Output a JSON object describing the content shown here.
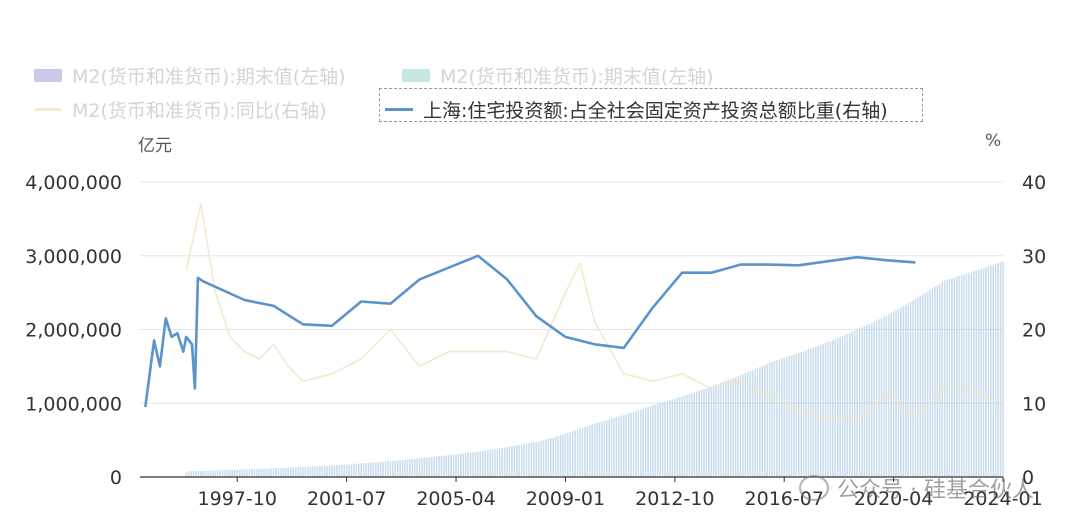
{
  "legend": {
    "item1": "M2(货币和准货币):期末值(左轴)",
    "item2": "M2(货币和准货币):期末值(左轴)",
    "item3": "M2(货币和准货币):同比(右轴)",
    "item4": "上海:住宅投资额:占全社会固定资产投资总额比重(右轴)"
  },
  "units": {
    "left": "亿元",
    "right": "%"
  },
  "watermark": "公众号 · 硅基合伙人",
  "colors": {
    "m2_bars": "#a9c8e3",
    "m2_yoy": "#f3e6c8",
    "shanghai_line": "#5b93cd",
    "legend_bar1": "#c9c9e6",
    "legend_bar2": "#c6e8e1",
    "legend_yoy": "#f5ebd3"
  },
  "chart_data": {
    "type": "bar+line",
    "x_ticks": [
      "1997-10",
      "2001-07",
      "2005-04",
      "2009-01",
      "2012-10",
      "2016-07",
      "2020-04",
      "2024-01"
    ],
    "x_range": [
      "1994-06",
      "2024-01"
    ],
    "left_axis": {
      "label": "亿元",
      "ticks": [
        "4,000,000",
        "3,000,000",
        "2,000,000",
        "1,000,000",
        "0"
      ],
      "ylim": [
        0,
        4000000
      ]
    },
    "right_axis": {
      "label": "%",
      "ticks": [
        "40",
        "30",
        "20",
        "10",
        "0"
      ],
      "ylim": [
        0,
        40
      ]
    },
    "grid": true,
    "legend_position": "top",
    "series": [
      {
        "name": "M2(货币和准货币):期末值(左轴)",
        "type": "bar",
        "axis": "left",
        "points": [
          [
            1996.0,
            76000
          ],
          [
            1998.0,
            104000
          ],
          [
            2000.0,
            134000
          ],
          [
            2002.0,
            185000
          ],
          [
            2004.0,
            254000
          ],
          [
            2006.0,
            346000
          ],
          [
            2008.0,
            475000
          ],
          [
            2010.0,
            725000
          ],
          [
            2012.0,
            974000
          ],
          [
            2014.0,
            1228000
          ],
          [
            2016.0,
            1550000
          ],
          [
            2018.0,
            1827000
          ],
          [
            2020.0,
            2187000
          ],
          [
            2022.0,
            2664000
          ],
          [
            2024.0,
            2923000
          ]
        ]
      },
      {
        "name": "M2(货币和准货币):同比(右轴)",
        "type": "line",
        "axis": "right",
        "points": [
          [
            1996.0,
            28
          ],
          [
            1996.5,
            37
          ],
          [
            1997.0,
            25
          ],
          [
            1997.5,
            19
          ],
          [
            1998.0,
            17
          ],
          [
            1998.5,
            16
          ],
          [
            1999.0,
            18
          ],
          [
            1999.5,
            15
          ],
          [
            2000.0,
            13
          ],
          [
            2001.0,
            14
          ],
          [
            2002.0,
            16
          ],
          [
            2003.0,
            20
          ],
          [
            2004.0,
            15
          ],
          [
            2005.0,
            17
          ],
          [
            2006.0,
            17
          ],
          [
            2007.0,
            17
          ],
          [
            2008.0,
            16
          ],
          [
            2009.0,
            25
          ],
          [
            2009.5,
            29
          ],
          [
            2010.0,
            21
          ],
          [
            2011.0,
            14
          ],
          [
            2012.0,
            13
          ],
          [
            2013.0,
            14
          ],
          [
            2014.0,
            12
          ],
          [
            2015.0,
            13
          ],
          [
            2016.0,
            11
          ],
          [
            2017.0,
            9
          ],
          [
            2018.0,
            8
          ],
          [
            2019.0,
            8
          ],
          [
            2020.0,
            11
          ],
          [
            2021.0,
            8
          ],
          [
            2022.0,
            12
          ],
          [
            2023.0,
            12
          ],
          [
            2024.0,
            9
          ]
        ]
      },
      {
        "name": "上海:住宅投资额:占全社会固定资产投资总额比重(右轴)",
        "type": "line",
        "axis": "right",
        "points": [
          [
            1994.6,
            9.5
          ],
          [
            1994.9,
            18.5
          ],
          [
            1995.1,
            15.0
          ],
          [
            1995.3,
            21.5
          ],
          [
            1995.5,
            19.0
          ],
          [
            1995.7,
            19.5
          ],
          [
            1995.9,
            17.0
          ],
          [
            1996.0,
            19.0
          ],
          [
            1996.2,
            18.0
          ],
          [
            1996.3,
            12.0
          ],
          [
            1996.4,
            27.0
          ],
          [
            1996.6,
            26.5
          ],
          [
            1998.0,
            24.0
          ],
          [
            1999.0,
            23.2
          ],
          [
            2000.0,
            20.7
          ],
          [
            2001.0,
            20.5
          ],
          [
            2002.0,
            23.8
          ],
          [
            2003.0,
            23.5
          ],
          [
            2004.0,
            26.8
          ],
          [
            2006.0,
            30.0
          ],
          [
            2007.0,
            26.8
          ],
          [
            2008.0,
            21.8
          ],
          [
            2009.0,
            19.0
          ],
          [
            2010.0,
            18.0
          ],
          [
            2011.0,
            17.5
          ],
          [
            2012.0,
            23.0
          ],
          [
            2013.0,
            27.7
          ],
          [
            2014.0,
            27.7
          ],
          [
            2015.0,
            28.8
          ],
          [
            2016.0,
            28.8
          ],
          [
            2017.0,
            28.7
          ],
          [
            2019.0,
            29.8
          ],
          [
            2020.0,
            29.4
          ],
          [
            2021.0,
            29.1
          ]
        ]
      }
    ]
  }
}
